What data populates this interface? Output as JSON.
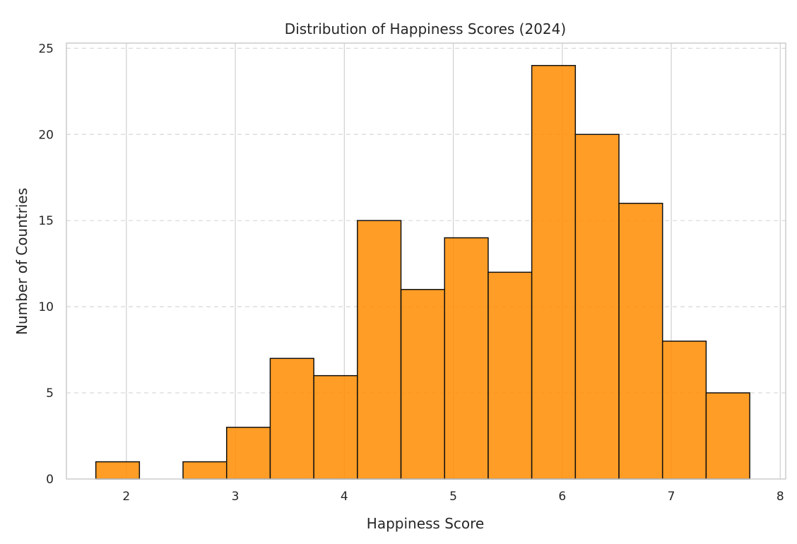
{
  "chart_data": {
    "type": "bar",
    "title": "Distribution of Happiness Scores (2024)",
    "xlabel": "Happiness Score",
    "ylabel": "Number of Countries",
    "xlim": [
      1.45,
      8.05
    ],
    "ylim": [
      0,
      25.3
    ],
    "xticks": [
      2,
      3,
      4,
      5,
      6,
      7,
      8
    ],
    "yticks": [
      0,
      5,
      10,
      15,
      20,
      25
    ],
    "grid": {
      "vertical": "solid",
      "horizontal": "dashed"
    },
    "bar_color": "#ff8c00",
    "edge_color": "#111111",
    "bins": [
      {
        "x0": 1.72,
        "x1": 2.12,
        "count": 1
      },
      {
        "x0": 2.12,
        "x1": 2.52,
        "count": 0
      },
      {
        "x0": 2.52,
        "x1": 2.92,
        "count": 1
      },
      {
        "x0": 2.92,
        "x1": 3.32,
        "count": 3
      },
      {
        "x0": 3.32,
        "x1": 3.72,
        "count": 7
      },
      {
        "x0": 3.72,
        "x1": 4.12,
        "count": 6
      },
      {
        "x0": 4.12,
        "x1": 4.52,
        "count": 15
      },
      {
        "x0": 4.52,
        "x1": 4.92,
        "count": 11
      },
      {
        "x0": 4.92,
        "x1": 5.32,
        "count": 14
      },
      {
        "x0": 5.32,
        "x1": 5.72,
        "count": 12
      },
      {
        "x0": 5.72,
        "x1": 6.12,
        "count": 24
      },
      {
        "x0": 6.12,
        "x1": 6.52,
        "count": 20
      },
      {
        "x0": 6.52,
        "x1": 6.92,
        "count": 16
      },
      {
        "x0": 6.92,
        "x1": 7.32,
        "count": 8
      },
      {
        "x0": 7.32,
        "x1": 7.72,
        "count": 5
      }
    ]
  }
}
